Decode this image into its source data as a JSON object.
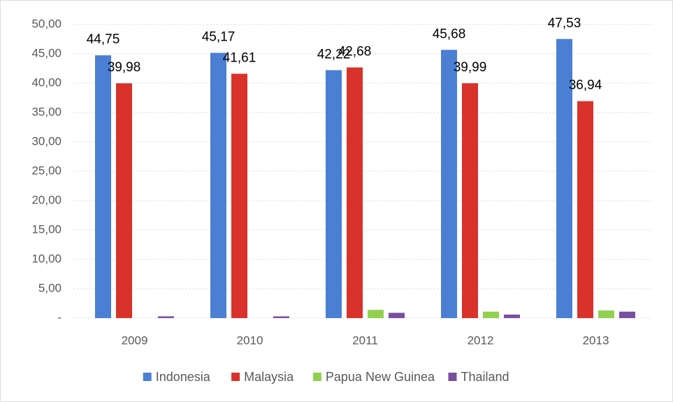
{
  "chart_data": {
    "type": "bar",
    "categories": [
      "2009",
      "2010",
      "2011",
      "2012",
      "2013"
    ],
    "series": [
      {
        "name": "Indonesia",
        "color": "#4a7fd4",
        "values": [
          44.75,
          45.17,
          42.22,
          45.68,
          47.53
        ],
        "value_labels": [
          "44,75",
          "45,17",
          "42,22",
          "45,68",
          "47,53"
        ]
      },
      {
        "name": "Malaysia",
        "color": "#d9322b",
        "values": [
          39.98,
          41.61,
          42.68,
          39.99,
          36.94
        ],
        "value_labels": [
          "39,98",
          "41,61",
          "42,68",
          "39,99",
          "36,94"
        ]
      },
      {
        "name": "Papua New Guinea",
        "color": "#92d050",
        "values": [
          0,
          0,
          1.4,
          1.1,
          1.3
        ]
      },
      {
        "name": "Thailand",
        "color": "#7a4fa0",
        "values": [
          0.3,
          0.3,
          0.9,
          0.6,
          1.1
        ]
      }
    ],
    "ylim": [
      0,
      50
    ],
    "yticks": [
      {
        "value": 0,
        "label": "-"
      },
      {
        "value": 5,
        "label": "5,00"
      },
      {
        "value": 10,
        "label": "10,00"
      },
      {
        "value": 15,
        "label": "15,00"
      },
      {
        "value": 20,
        "label": "20,00"
      },
      {
        "value": 25,
        "label": "25,00"
      },
      {
        "value": 30,
        "label": "30,00"
      },
      {
        "value": 35,
        "label": "35,00"
      },
      {
        "value": 40,
        "label": "40,00"
      },
      {
        "value": 45,
        "label": "45,00"
      },
      {
        "value": 50,
        "label": "50,00"
      }
    ],
    "grid": true,
    "legend": "bottom"
  }
}
